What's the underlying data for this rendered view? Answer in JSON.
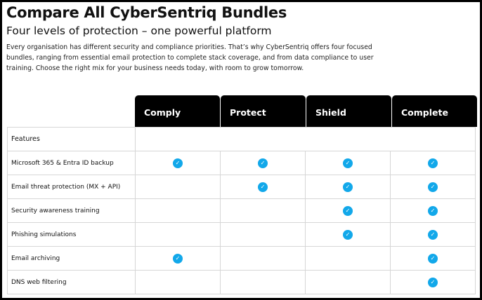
{
  "title": "Compare All CyberSentriq Bundles",
  "subtitle": "Four levels of protection – one powerful platform",
  "intro": "Every organisation has different security and compliance priorities. That’s why CyberSentriq offers four focused bundles, ranging from essential email protection to complete stack coverage, and from data compliance to user training. Choose the right mix for your business needs today, with room to grow tomorrow.",
  "accent": "#12a8ea",
  "bundles": [
    "Comply",
    "Protect",
    "Shield",
    "Complete"
  ],
  "features_label": "Features",
  "features": [
    {
      "name": "Microsoft 365 & Entra ID backup",
      "included": [
        true,
        true,
        true,
        true
      ]
    },
    {
      "name": "Email threat protection (MX + API)",
      "included": [
        false,
        true,
        true,
        true
      ]
    },
    {
      "name": "Security awareness training",
      "included": [
        false,
        false,
        true,
        true
      ]
    },
    {
      "name": "Phishing simulations",
      "included": [
        false,
        false,
        true,
        true
      ]
    },
    {
      "name": "Email archiving",
      "included": [
        true,
        false,
        false,
        true
      ]
    },
    {
      "name": "DNS web filtering",
      "included": [
        false,
        false,
        false,
        true
      ]
    }
  ],
  "check_icon": "check-circle-icon"
}
